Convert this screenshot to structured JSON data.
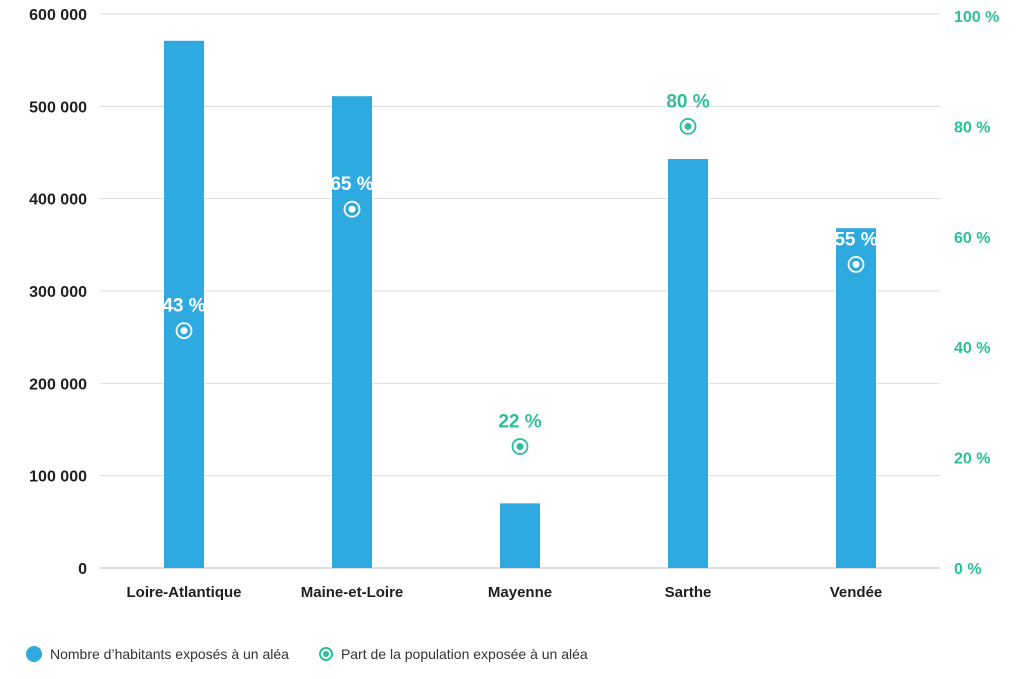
{
  "chart_data": {
    "type": "bar",
    "categories": [
      "Loire-Atlantique",
      "Maine-et-Loire",
      "Mayenne",
      "Sarthe",
      "Vendée"
    ],
    "series": [
      {
        "name": "Nombre d’habitants exposés à un aléa",
        "type": "bar",
        "axis": "left",
        "values": [
          571000,
          511000,
          70000,
          443000,
          368000
        ]
      },
      {
        "name": "Part de la population exposée à un aléa",
        "type": "point",
        "axis": "right",
        "values": [
          43,
          65,
          22,
          80,
          55
        ],
        "labels": [
          "43 %",
          "65 %",
          "22 %",
          "80 %",
          "55 %"
        ]
      }
    ],
    "y_left": {
      "ylim": [
        0,
        600000
      ],
      "ticks": [
        "0",
        "100 000",
        "200 000",
        "300 000",
        "400 000",
        "500 000",
        "600 000"
      ]
    },
    "y_right": {
      "ylim": [
        0,
        100
      ],
      "ticks": [
        "0 %",
        "20 %",
        "40 %",
        "60 %",
        "80 %",
        "100 %"
      ]
    },
    "grid": true,
    "legend_position": "bottom-left",
    "colors": {
      "bar": "#2eaae1",
      "point": "#2bbf9b",
      "text": "#1f1f1f",
      "grid": "#dddddd"
    }
  },
  "legend": {
    "bar_label": "Nombre d’habitants exposés à un aléa",
    "point_label": "Part de la population exposée à un aléa"
  }
}
